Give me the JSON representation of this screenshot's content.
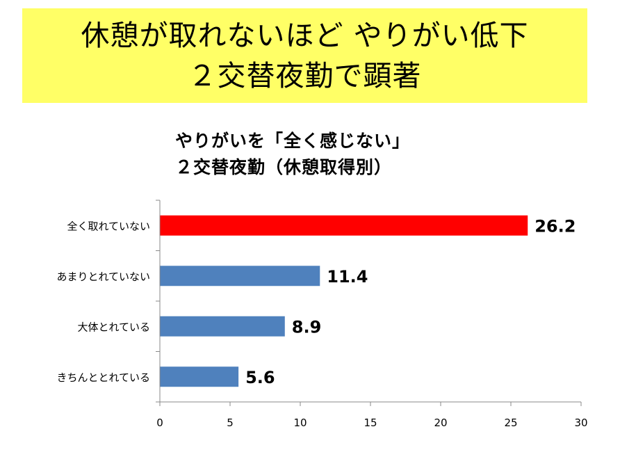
{
  "banner": {
    "line1": "休憩が取れないほど やりがい低下",
    "line2": "２交替夜勤で顕著",
    "background": "#ffff66"
  },
  "chart_data": {
    "type": "bar",
    "orientation": "horizontal",
    "title": [
      "やりがいを「全く感じない」",
      "２交替夜勤（休憩取得別）"
    ],
    "categories": [
      "全く取れていない",
      "あまりとれていない",
      "大体とれている",
      "きちんととれている"
    ],
    "values": [
      26.2,
      11.4,
      8.9,
      5.6
    ],
    "data_labels": [
      "26.2",
      "11.4",
      "8.9",
      "5.6"
    ],
    "colors": [
      "#ff0000",
      "#4f81bd",
      "#4f81bd",
      "#4f81bd"
    ],
    "xlim": [
      0,
      30
    ],
    "xticks": [
      0,
      5,
      10,
      15,
      20,
      25,
      30
    ],
    "xlabel": "",
    "ylabel": "",
    "grid": false,
    "legend": "none"
  }
}
